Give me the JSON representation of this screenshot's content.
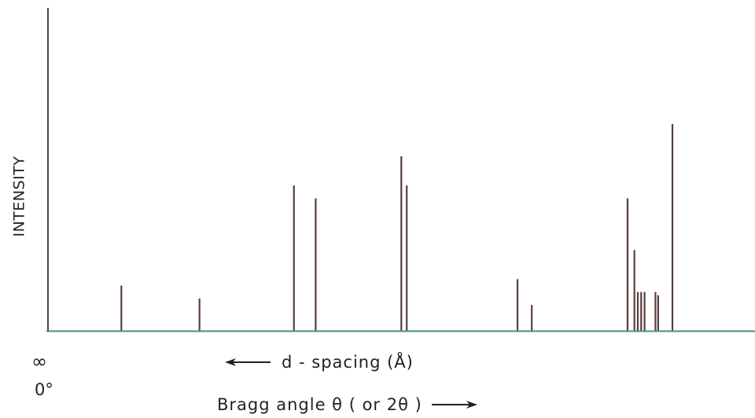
{
  "chart_data": {
    "type": "bar",
    "title": "",
    "ylabel": "INTENSITY",
    "x_axis": {
      "left_top_label": "∞",
      "left_bottom_label": "0°",
      "d_spacing_label": "d - spacing (Å)",
      "bragg_label": "Bragg angle θ ( or 2θ )"
    },
    "xlim": [
      0,
      100
    ],
    "ylim": [
      0,
      100
    ],
    "grid": false,
    "peaks": [
      {
        "x": 0,
        "y": 100
      },
      {
        "x": 10.8,
        "y": 14
      },
      {
        "x": 22.3,
        "y": 10
      },
      {
        "x": 36.2,
        "y": 45
      },
      {
        "x": 39.4,
        "y": 41
      },
      {
        "x": 52.0,
        "y": 54
      },
      {
        "x": 52.8,
        "y": 45
      },
      {
        "x": 69.1,
        "y": 16
      },
      {
        "x": 71.2,
        "y": 8
      },
      {
        "x": 85.3,
        "y": 41
      },
      {
        "x": 86.3,
        "y": 25
      },
      {
        "x": 86.8,
        "y": 12
      },
      {
        "x": 87.3,
        "y": 12
      },
      {
        "x": 87.8,
        "y": 12
      },
      {
        "x": 89.4,
        "y": 12
      },
      {
        "x": 89.8,
        "y": 11
      },
      {
        "x": 91.9,
        "y": 64
      }
    ],
    "colors": {
      "peak": "#5a3e3e",
      "baseline": "#4a8f86",
      "text": "#222222"
    }
  }
}
